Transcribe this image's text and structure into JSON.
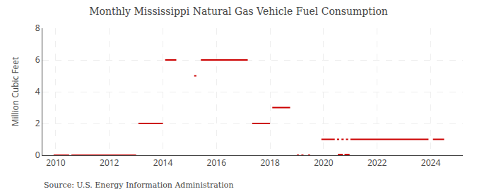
{
  "chart_data": {
    "type": "segments",
    "title": "Monthly Mississippi Natural Gas Vehicle Fuel Consumption",
    "ylabel": "Million Cubic Feet",
    "annotations": [
      "Source: U.S. Energy Information Administration"
    ],
    "color": "#cc0000",
    "grid": true,
    "xlim": [
      2009.5,
      2025.2
    ],
    "ylim": [
      0,
      8
    ],
    "xticks": [
      2010,
      2012,
      2014,
      2016,
      2018,
      2020,
      2022,
      2024
    ],
    "yticks": [
      0,
      2,
      4,
      6,
      8
    ],
    "segments": [
      {
        "x_start": 2009.917,
        "x_end": 2010.5,
        "y": 0.0
      },
      {
        "x_start": 2010.583,
        "x_end": 2013.0,
        "y": 0.0
      },
      {
        "x_start": 2013.083,
        "x_end": 2014.0,
        "y": 2.0
      },
      {
        "x_start": 2014.083,
        "x_end": 2014.5,
        "y": 6.0
      },
      {
        "x_start": 2015.167,
        "x_end": 2015.25,
        "y": 5.0
      },
      {
        "x_start": 2015.417,
        "x_end": 2017.167,
        "y": 6.0
      },
      {
        "x_start": 2017.333,
        "x_end": 2018.0,
        "y": 2.0
      },
      {
        "x_start": 2018.083,
        "x_end": 2018.75,
        "y": 3.0
      },
      {
        "x_start": 2019.0,
        "x_end": 2019.083,
        "y": 0.0
      },
      {
        "x_start": 2019.167,
        "x_end": 2019.25,
        "y": 0.0
      },
      {
        "x_start": 2019.417,
        "x_end": 2019.5,
        "y": 0.0
      },
      {
        "x_start": 2019.917,
        "x_end": 2020.417,
        "y": 1.0
      },
      {
        "x_start": 2020.5,
        "x_end": 2020.583,
        "y": 1.0
      },
      {
        "x_start": 2020.583,
        "x_end": 2020.583,
        "y": 0.0
      },
      {
        "x_start": 2020.667,
        "x_end": 2020.75,
        "y": 1.0
      },
      {
        "x_start": 2020.667,
        "x_end": 2020.667,
        "y": 0.0
      },
      {
        "x_start": 2020.833,
        "x_end": 2020.917,
        "y": 1.0
      },
      {
        "x_start": 2020.833,
        "x_end": 2020.833,
        "y": 0.0
      },
      {
        "x_start": 2020.917,
        "x_end": 2020.917,
        "y": 0.0
      },
      {
        "x_start": 2021.0,
        "x_end": 2023.917,
        "y": 1.0
      },
      {
        "x_start": 2024.083,
        "x_end": 2024.5,
        "y": 1.0
      }
    ]
  }
}
